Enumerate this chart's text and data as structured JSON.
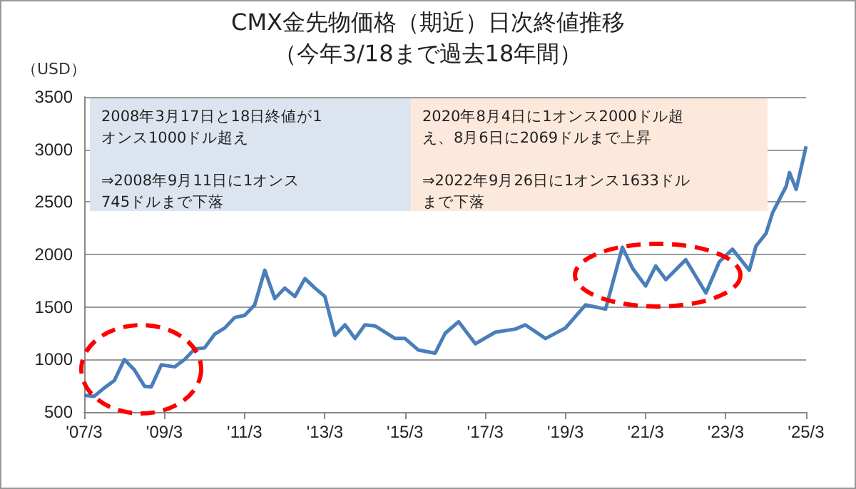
{
  "chart_data": {
    "type": "line",
    "title": "CMX金先物価格（期近）日次終値推移",
    "subtitle": "（今年3/18まで過去18年間）",
    "ylabel": "（USD）",
    "annotations": [
      "2008年3月17日と18日終値が1オンス1000ドル超え\n\n⇒2008年9月11日に1オンス745ドルまで下落",
      "2020年8月4日に1オンス2000ドル超え、8月6日に2069ドルまで上昇\n\n⇒2022年9月26日に1オンス1633ドルまで下落"
    ],
    "x": [
      "2007-03",
      "2007-06",
      "2007-09",
      "2007-12",
      "2008-03",
      "2008-06",
      "2008-09",
      "2008-11",
      "2009-02",
      "2009-06",
      "2009-09",
      "2009-12",
      "2010-03",
      "2010-06",
      "2010-09",
      "2010-12",
      "2011-03",
      "2011-06",
      "2011-09",
      "2011-12",
      "2012-03",
      "2012-06",
      "2012-09",
      "2012-12",
      "2013-03",
      "2013-06",
      "2013-09",
      "2013-12",
      "2014-03",
      "2014-06",
      "2014-12",
      "2015-03",
      "2015-07",
      "2015-12",
      "2016-03",
      "2016-07",
      "2016-12",
      "2017-06",
      "2017-12",
      "2018-03",
      "2018-09",
      "2019-03",
      "2019-09",
      "2020-03",
      "2020-08",
      "2020-11",
      "2021-03",
      "2021-06",
      "2021-09",
      "2022-03",
      "2022-09",
      "2023-01",
      "2023-05",
      "2023-10",
      "2023-12",
      "2024-03",
      "2024-05",
      "2024-09",
      "2024-10",
      "2024-12",
      "2025-02",
      "2025-03"
    ],
    "series": [
      {
        "color": "#4a7ebb",
        "values": [
          660,
          650,
          730,
          800,
          1000,
          900,
          745,
          740,
          950,
          930,
          1000,
          1100,
          1110,
          1240,
          1300,
          1400,
          1420,
          1520,
          1850,
          1580,
          1680,
          1600,
          1770,
          1680,
          1600,
          1230,
          1330,
          1200,
          1330,
          1320,
          1200,
          1200,
          1090,
          1060,
          1250,
          1360,
          1150,
          1260,
          1290,
          1330,
          1200,
          1300,
          1520,
          1480,
          2069,
          1870,
          1700,
          1890,
          1760,
          1950,
          1633,
          1930,
          2050,
          1850,
          2080,
          2200,
          2400,
          2650,
          2780,
          2620,
          2900,
          3030
        ]
      }
    ],
    "xlim": [
      "2007-03",
      "2025-03"
    ],
    "xticks": [
      {
        "value": "2007-03",
        "label": "'07/3"
      },
      {
        "value": "2009-03",
        "label": "'09/3"
      },
      {
        "value": "2011-03",
        "label": "'11/3"
      },
      {
        "value": "2013-03",
        "label": "'13/3"
      },
      {
        "value": "2015-03",
        "label": "'15/3"
      },
      {
        "value": "2017-03",
        "label": "'17/3"
      },
      {
        "value": "2019-03",
        "label": "'19/3"
      },
      {
        "value": "2021-03",
        "label": "'21/3"
      },
      {
        "value": "2023-03",
        "label": "'23/3"
      },
      {
        "value": "2025-03",
        "label": "'25/3"
      }
    ],
    "ylim": [
      500,
      3500
    ],
    "yticks": [
      500,
      1000,
      1500,
      2000,
      2500,
      3000,
      3500
    ],
    "grid": "y",
    "marker": "none",
    "line_style": "solid"
  }
}
